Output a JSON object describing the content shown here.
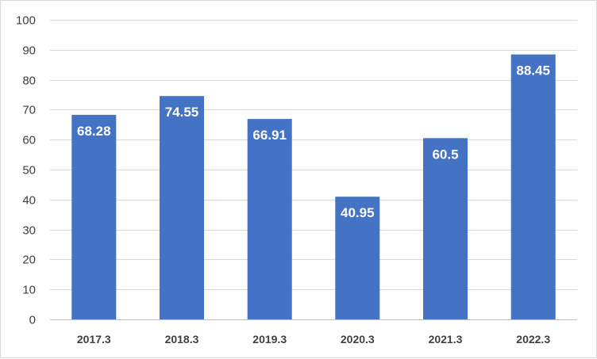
{
  "chart_data": {
    "type": "bar",
    "title": "",
    "xlabel": "",
    "ylabel": "",
    "categories": [
      "2017.3",
      "2018.3",
      "2019.3",
      "2020.3",
      "2021.3",
      "2022.3"
    ],
    "values": [
      68.28,
      74.55,
      66.91,
      40.95,
      60.5,
      88.45
    ],
    "data_labels": [
      "68.28",
      "74.55",
      "66.91",
      "40.95",
      "60.5",
      "88.45"
    ],
    "ylim": [
      0,
      100
    ],
    "yticks": [
      0,
      10,
      20,
      30,
      40,
      50,
      60,
      70,
      80,
      90,
      100
    ],
    "grid": true,
    "legend": "none",
    "bar_color": "#4472C4"
  }
}
